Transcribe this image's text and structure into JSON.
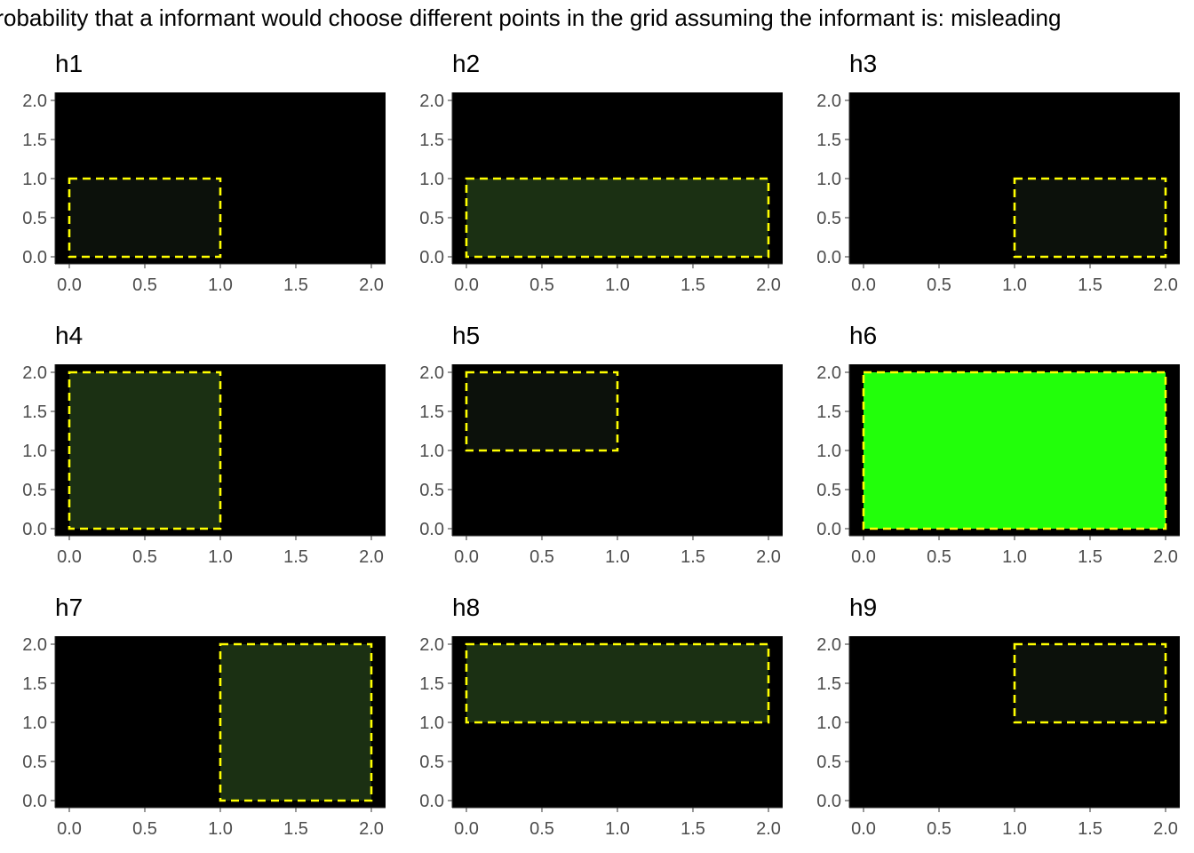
{
  "title": "Probability that a informant would choose different points in the grid assuming the informant is: misleading",
  "colors": {
    "panel_bg": "#000000",
    "rect_border": "#ffff00",
    "fill_low": "#0c110b",
    "fill_mid": "#1b3013",
    "fill_high": "#22ff0a"
  },
  "chart_data": [
    {
      "type": "heatmap",
      "title": "h1",
      "xlim": [
        0,
        2
      ],
      "ylim": [
        0,
        2
      ],
      "xticks": [
        "0.0",
        "0.5",
        "1.0",
        "1.5",
        "2.0"
      ],
      "yticks": [
        "0.0",
        "0.5",
        "1.0",
        "1.5",
        "2.0"
      ],
      "region": {
        "x": [
          0,
          1
        ],
        "y": [
          0,
          1
        ]
      },
      "intensity": 0.04
    },
    {
      "type": "heatmap",
      "title": "h2",
      "xlim": [
        0,
        2
      ],
      "ylim": [
        0,
        2
      ],
      "xticks": [
        "0.0",
        "0.5",
        "1.0",
        "1.5",
        "2.0"
      ],
      "yticks": [
        "0.0",
        "0.5",
        "1.0",
        "1.5",
        "2.0"
      ],
      "region": {
        "x": [
          0,
          2
        ],
        "y": [
          0,
          1
        ]
      },
      "intensity": 0.12
    },
    {
      "type": "heatmap",
      "title": "h3",
      "xlim": [
        0,
        2
      ],
      "ylim": [
        0,
        2
      ],
      "xticks": [
        "0.0",
        "0.5",
        "1.0",
        "1.5",
        "2.0"
      ],
      "yticks": [
        "0.0",
        "0.5",
        "1.0",
        "1.5",
        "2.0"
      ],
      "region": {
        "x": [
          1,
          2
        ],
        "y": [
          0,
          1
        ]
      },
      "intensity": 0.04
    },
    {
      "type": "heatmap",
      "title": "h4",
      "xlim": [
        0,
        2
      ],
      "ylim": [
        0,
        2
      ],
      "xticks": [
        "0.0",
        "0.5",
        "1.0",
        "1.5",
        "2.0"
      ],
      "yticks": [
        "0.0",
        "0.5",
        "1.0",
        "1.5",
        "2.0"
      ],
      "region": {
        "x": [
          0,
          1
        ],
        "y": [
          0,
          2
        ]
      },
      "intensity": 0.12
    },
    {
      "type": "heatmap",
      "title": "h5",
      "xlim": [
        0,
        2
      ],
      "ylim": [
        0,
        2
      ],
      "xticks": [
        "0.0",
        "0.5",
        "1.0",
        "1.5",
        "2.0"
      ],
      "yticks": [
        "0.0",
        "0.5",
        "1.0",
        "1.5",
        "2.0"
      ],
      "region": {
        "x": [
          0,
          1
        ],
        "y": [
          1,
          2
        ]
      },
      "intensity": 0.04
    },
    {
      "type": "heatmap",
      "title": "h6",
      "xlim": [
        0,
        2
      ],
      "ylim": [
        0,
        2
      ],
      "xticks": [
        "0.0",
        "0.5",
        "1.0",
        "1.5",
        "2.0"
      ],
      "yticks": [
        "0.0",
        "0.5",
        "1.0",
        "1.5",
        "2.0"
      ],
      "region": {
        "x": [
          0,
          2
        ],
        "y": [
          0,
          2
        ]
      },
      "intensity": 1.0
    },
    {
      "type": "heatmap",
      "title": "h7",
      "xlim": [
        0,
        2
      ],
      "ylim": [
        0,
        2
      ],
      "xticks": [
        "0.0",
        "0.5",
        "1.0",
        "1.5",
        "2.0"
      ],
      "yticks": [
        "0.0",
        "0.5",
        "1.0",
        "1.5",
        "2.0"
      ],
      "region": {
        "x": [
          1,
          2
        ],
        "y": [
          0,
          2
        ]
      },
      "intensity": 0.12
    },
    {
      "type": "heatmap",
      "title": "h8",
      "xlim": [
        0,
        2
      ],
      "ylim": [
        0,
        2
      ],
      "xticks": [
        "0.0",
        "0.5",
        "1.0",
        "1.5",
        "2.0"
      ],
      "yticks": [
        "0.0",
        "0.5",
        "1.0",
        "1.5",
        "2.0"
      ],
      "region": {
        "x": [
          0,
          2
        ],
        "y": [
          1,
          2
        ]
      },
      "intensity": 0.12
    },
    {
      "type": "heatmap",
      "title": "h9",
      "xlim": [
        0,
        2
      ],
      "ylim": [
        0,
        2
      ],
      "xticks": [
        "0.0",
        "0.5",
        "1.0",
        "1.5",
        "2.0"
      ],
      "yticks": [
        "0.0",
        "0.5",
        "1.0",
        "1.5",
        "2.0"
      ],
      "region": {
        "x": [
          1,
          2
        ],
        "y": [
          1,
          2
        ]
      },
      "intensity": 0.04
    }
  ]
}
